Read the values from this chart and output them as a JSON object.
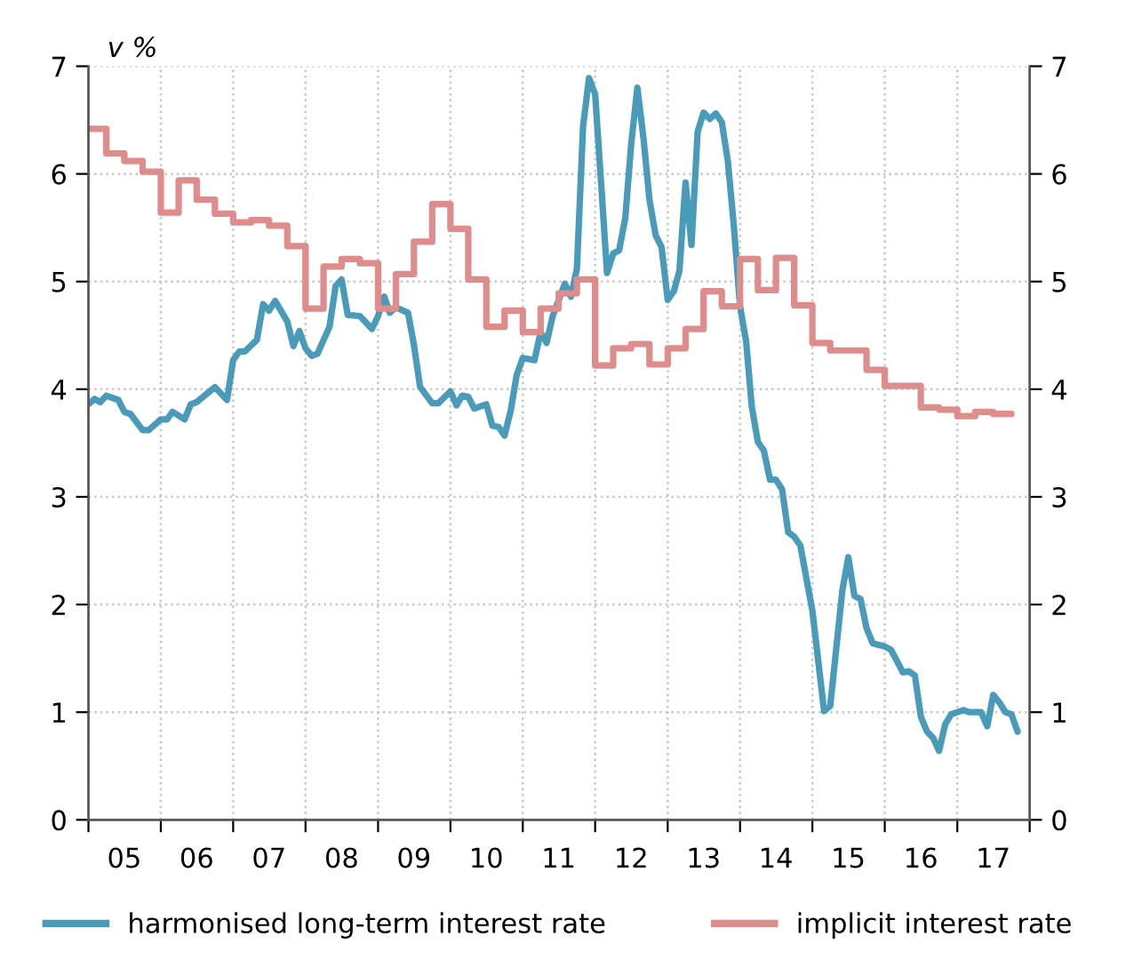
{
  "chart_data": {
    "type": "line",
    "ylabel": "v %",
    "xlim": [
      "2005-01",
      "2018-01"
    ],
    "ylim": [
      0,
      7
    ],
    "y2lim": [
      0,
      7
    ],
    "xticks": [
      {
        "value": "2005",
        "label": null
      },
      {
        "value": "2006",
        "label": null
      },
      {
        "value": "2007",
        "label": null
      },
      {
        "value": "2008",
        "label": null
      },
      {
        "value": "2009",
        "label": null
      },
      {
        "value": "2010",
        "label": null
      },
      {
        "value": "2011",
        "label": null
      },
      {
        "value": "2012",
        "label": null
      },
      {
        "value": "2013",
        "label": null
      },
      {
        "value": "2014",
        "label": null
      },
      {
        "value": "2015",
        "label": null
      },
      {
        "value": "2016",
        "label": null
      },
      {
        "value": "2017",
        "label": null
      },
      {
        "value": "2018",
        "label": null
      },
      {
        "value": "2005-07",
        "label": "05"
      },
      {
        "value": "2006-07",
        "label": "06"
      },
      {
        "value": "2007-07",
        "label": "07"
      },
      {
        "value": "2008-07",
        "label": "08"
      },
      {
        "value": "2009-07",
        "label": "09"
      },
      {
        "value": "2010-07",
        "label": "10"
      },
      {
        "value": "2011-07",
        "label": "11"
      },
      {
        "value": "2012-07",
        "label": "12"
      },
      {
        "value": "2013-07",
        "label": "13"
      },
      {
        "value": "2014-07",
        "label": "14"
      },
      {
        "value": "2015-07",
        "label": "15"
      },
      {
        "value": "2016-07",
        "label": "16"
      },
      {
        "value": "2017-07",
        "label": "17"
      }
    ],
    "yticks": [
      0,
      1,
      2,
      3,
      4,
      5,
      6,
      7
    ],
    "y2ticks": [
      0,
      1,
      2,
      3,
      4,
      5,
      6,
      7
    ],
    "grid": true,
    "legend": "bottom",
    "line_style": "solid",
    "series": [
      {
        "name": "harmonised long-term interest rate",
        "color": "#4a9aba",
        "x": [
          "2005-01",
          "2005-02",
          "2005-03",
          "2005-04",
          "2005-06",
          "2005-07",
          "2005-08",
          "2005-10",
          "2005-11",
          "2006-01",
          "2006-02",
          "2006-03",
          "2006-05",
          "2006-06",
          "2006-07",
          "2006-10",
          "2006-12",
          "2007-01",
          "2007-02",
          "2007-03",
          "2007-05",
          "2007-06",
          "2007-07",
          "2007-08",
          "2007-10",
          "2007-11",
          "2007-12",
          "2008-01",
          "2008-02",
          "2008-03",
          "2008-05",
          "2008-06",
          "2008-07",
          "2008-08",
          "2008-10",
          "2008-12",
          "2009-01",
          "2009-02",
          "2009-03",
          "2009-04",
          "2009-06",
          "2009-07",
          "2009-08",
          "2009-10",
          "2009-11",
          "2010-01",
          "2010-02",
          "2010-03",
          "2010-04",
          "2010-05",
          "2010-07",
          "2010-08",
          "2010-09",
          "2010-10",
          "2010-11",
          "2010-12",
          "2011-01",
          "2011-03",
          "2011-04",
          "2011-05",
          "2011-06",
          "2011-08",
          "2011-09",
          "2011-10",
          "2011-11",
          "2011-12",
          "2012-01",
          "2012-02",
          "2012-03",
          "2012-04",
          "2012-05",
          "2012-06",
          "2012-07",
          "2012-08",
          "2012-09",
          "2012-10",
          "2012-11",
          "2012-12",
          "2013-01",
          "2013-02",
          "2013-03",
          "2013-04",
          "2013-05",
          "2013-06",
          "2013-07",
          "2013-08",
          "2013-09",
          "2013-10",
          "2013-11",
          "2013-12",
          "2014-01",
          "2014-02",
          "2014-03",
          "2014-04",
          "2014-05",
          "2014-06",
          "2014-07",
          "2014-08",
          "2014-09",
          "2014-10",
          "2014-11",
          "2015-01",
          "2015-03",
          "2015-04",
          "2015-06",
          "2015-07",
          "2015-08",
          "2015-09",
          "2015-10",
          "2015-11",
          "2016-01",
          "2016-02",
          "2016-03",
          "2016-04",
          "2016-05",
          "2016-06",
          "2016-07",
          "2016-08",
          "2016-09",
          "2016-10",
          "2016-11",
          "2016-12",
          "2017-02",
          "2017-03",
          "2017-05",
          "2017-06",
          "2017-07",
          "2017-08",
          "2017-09",
          "2017-10",
          "2017-11"
        ],
        "values": [
          3.86,
          3.91,
          3.88,
          3.94,
          3.9,
          3.79,
          3.77,
          3.62,
          3.62,
          3.72,
          3.72,
          3.79,
          3.72,
          3.86,
          3.88,
          4.02,
          3.9,
          4.27,
          4.35,
          4.35,
          4.46,
          4.79,
          4.73,
          4.82,
          4.63,
          4.4,
          4.54,
          4.38,
          4.31,
          4.33,
          4.58,
          4.96,
          5.02,
          4.69,
          4.68,
          4.56,
          4.68,
          4.86,
          4.71,
          4.76,
          4.71,
          4.41,
          4.02,
          3.87,
          3.87,
          3.98,
          3.85,
          3.94,
          3.93,
          3.82,
          3.86,
          3.66,
          3.65,
          3.57,
          3.8,
          4.13,
          4.29,
          4.27,
          4.53,
          4.43,
          4.68,
          4.98,
          4.86,
          5.12,
          6.44,
          6.89,
          6.74,
          5.89,
          5.08,
          5.26,
          5.29,
          5.59,
          6.28,
          6.8,
          6.33,
          5.76,
          5.43,
          5.32,
          4.83,
          4.91,
          5.1,
          5.92,
          5.34,
          6.39,
          6.57,
          6.51,
          6.56,
          6.48,
          6.11,
          5.51,
          4.77,
          4.44,
          3.84,
          3.51,
          3.43,
          3.16,
          3.16,
          3.07,
          2.67,
          2.63,
          2.55,
          1.94,
          1.01,
          1.06,
          2.13,
          2.44,
          2.08,
          2.05,
          1.78,
          1.64,
          1.61,
          1.58,
          1.48,
          1.37,
          1.38,
          1.34,
          0.96,
          0.82,
          0.76,
          0.64,
          0.89,
          0.98,
          1.02,
          1.0,
          1.0,
          0.87,
          1.16,
          1.09,
          1.0,
          0.98,
          0.82
        ]
      },
      {
        "name": "implicit interest rate",
        "color": "#de8c8c",
        "type": "step",
        "x": [
          "2005-01",
          "2005-04",
          "2005-07",
          "2005-10",
          "2006-01",
          "2006-04",
          "2006-07",
          "2006-10",
          "2007-01",
          "2007-04",
          "2007-07",
          "2007-10",
          "2008-01",
          "2008-04",
          "2008-07",
          "2008-10",
          "2009-01",
          "2009-04",
          "2009-07",
          "2009-10",
          "2010-01",
          "2010-04",
          "2010-07",
          "2010-10",
          "2011-01",
          "2011-04",
          "2011-07",
          "2011-10",
          "2012-01",
          "2012-04",
          "2012-07",
          "2012-10",
          "2013-01",
          "2013-04",
          "2013-07",
          "2013-10",
          "2014-01",
          "2014-04",
          "2014-07",
          "2014-10",
          "2015-01",
          "2015-04",
          "2015-10",
          "2016-01",
          "2016-07",
          "2016-10",
          "2017-01",
          "2017-04",
          "2017-07",
          "2017-10"
        ],
        "values": [
          6.42,
          6.19,
          6.12,
          6.02,
          5.64,
          5.94,
          5.76,
          5.63,
          5.55,
          5.57,
          5.52,
          5.33,
          4.75,
          5.14,
          5.21,
          5.17,
          4.75,
          5.07,
          5.37,
          5.72,
          5.49,
          5.02,
          4.58,
          4.73,
          4.53,
          4.75,
          4.89,
          5.02,
          4.22,
          4.38,
          4.42,
          4.23,
          4.38,
          4.56,
          4.91,
          4.77,
          5.21,
          4.92,
          5.22,
          4.78,
          4.43,
          4.36,
          4.18,
          4.03,
          3.83,
          3.81,
          3.75,
          3.79,
          3.77,
          3.77
        ]
      }
    ]
  }
}
